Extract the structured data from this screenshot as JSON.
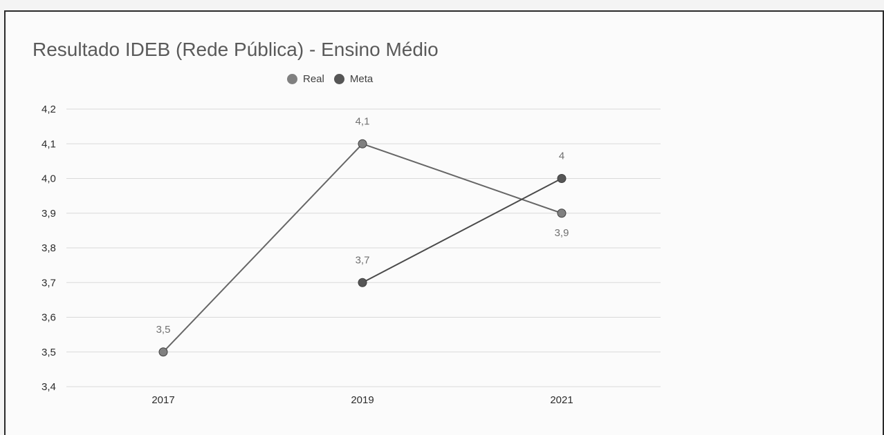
{
  "title": "Resultado IDEB (Rede Pública) - Ensino Médio",
  "colors": {
    "real": "#808080",
    "meta": "#565656",
    "grid": "#d9d9d9",
    "axis_text": "#2b2b2b",
    "label_text": "#707070"
  },
  "chart_data": {
    "type": "line",
    "title": "Resultado IDEB (Rede Pública) - Ensino Médio",
    "xlabel": "",
    "ylabel": "",
    "categories": [
      "2017",
      "2019",
      "2021"
    ],
    "ylim": [
      3.4,
      4.2
    ],
    "yticks": [
      "4,2",
      "4,1",
      "4,0",
      "3,9",
      "3,8",
      "3,7",
      "3,6",
      "3,5",
      "3,4"
    ],
    "grid": true,
    "legend_position": "top-center",
    "series": [
      {
        "name": "Real",
        "values": [
          3.5,
          4.1,
          3.9
        ],
        "labels": [
          "3,5",
          "4,1",
          "3,9"
        ]
      },
      {
        "name": "Meta",
        "values": [
          null,
          3.7,
          4.0
        ],
        "labels": [
          "",
          "3,7",
          "4"
        ]
      }
    ]
  }
}
